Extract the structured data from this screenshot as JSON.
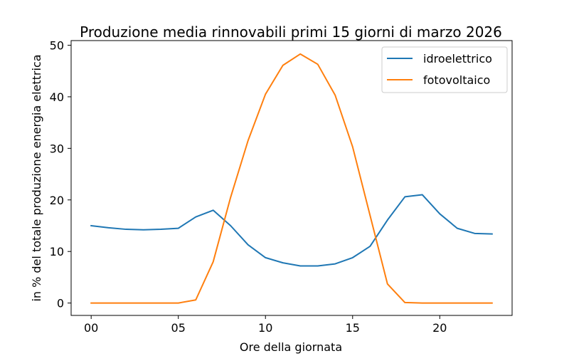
{
  "chart_data": {
    "type": "line",
    "title": "Produzione media rinnovabili primi 15 giorni di marzo 2026",
    "xlabel": "Ore della giornata",
    "ylabel": "in % del totale produzione energia elettrica",
    "x": [
      0,
      1,
      2,
      3,
      4,
      5,
      6,
      7,
      8,
      9,
      10,
      11,
      12,
      13,
      14,
      15,
      16,
      17,
      18,
      19,
      20,
      21,
      22,
      23
    ],
    "xticks": [
      {
        "value": 0,
        "label": "00"
      },
      {
        "value": 5,
        "label": "05"
      },
      {
        "value": 10,
        "label": "10"
      },
      {
        "value": 15,
        "label": "15"
      },
      {
        "value": 20,
        "label": "20"
      }
    ],
    "yticks": [
      {
        "value": 0,
        "label": "0"
      },
      {
        "value": 10,
        "label": "10"
      },
      {
        "value": 20,
        "label": "20"
      },
      {
        "value": 30,
        "label": "30"
      },
      {
        "value": 40,
        "label": "40"
      },
      {
        "value": 50,
        "label": "50"
      }
    ],
    "xlim": [
      -1.15,
      24.15
    ],
    "ylim": [
      -2.4,
      50.9
    ],
    "grid": false,
    "legend_position": "top-right",
    "series": [
      {
        "name": "idroelettrico",
        "color": "#1f77b4",
        "values": [
          15.0,
          14.6,
          14.3,
          14.2,
          14.3,
          14.5,
          16.7,
          18.0,
          15.0,
          11.3,
          8.8,
          7.8,
          7.2,
          7.2,
          7.6,
          8.8,
          11.0,
          16.1,
          20.6,
          21.0,
          17.3,
          14.5,
          13.5,
          13.4
        ]
      },
      {
        "name": "fotovoltaico",
        "color": "#ff7f0e",
        "values": [
          0.0,
          0.0,
          0.0,
          0.0,
          0.0,
          0.0,
          0.6,
          8.0,
          20.5,
          31.5,
          40.5,
          46.1,
          48.3,
          46.3,
          40.3,
          30.3,
          17.0,
          3.7,
          0.1,
          0.0,
          0.0,
          0.0,
          0.0,
          0.0
        ]
      }
    ]
  }
}
